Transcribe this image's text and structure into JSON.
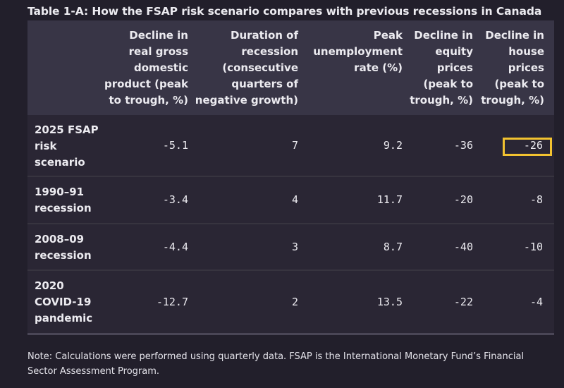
{
  "title": "Table 1-A: How the FSAP risk scenario compares with previous recessions in Canada",
  "headers": [
    [
      "Decline in",
      "real gross",
      "domestic",
      "product (peak",
      "to trough, %)"
    ],
    [
      "Duration of",
      "recession",
      "(consecutive",
      "quarters of",
      "negative growth)"
    ],
    [
      "Peak",
      "unemployment",
      "rate (%)"
    ],
    [
      "Decline in",
      "equity",
      "prices",
      "(peak to",
      "trough, %)"
    ],
    [
      "Decline in",
      "house",
      "prices",
      "(peak to",
      "trough, %)"
    ]
  ],
  "rows": [
    {
      "label": [
        "2025 FSAP",
        "risk",
        "scenario"
      ],
      "values": [
        "-5.1",
        "7",
        "9.2",
        "-36",
        "-26"
      ]
    },
    {
      "label": [
        "1990–91",
        "recession"
      ],
      "values": [
        "-3.4",
        "4",
        "11.7",
        "-20",
        "-8"
      ]
    },
    {
      "label": [
        "2008–09",
        "recession"
      ],
      "values": [
        "-4.4",
        "3",
        "8.7",
        "-40",
        "-10"
      ]
    },
    {
      "label": [
        "2020",
        "COVID-19",
        "pandemic"
      ],
      "values": [
        "-12.7",
        "2",
        "13.5",
        "-22",
        "-4"
      ]
    }
  ],
  "highlight_color": "#f2c230",
  "note": "Note: Calculations were performed using quarterly data. FSAP is the International Monetary Fund’s Financial Sector Assessment Program."
}
